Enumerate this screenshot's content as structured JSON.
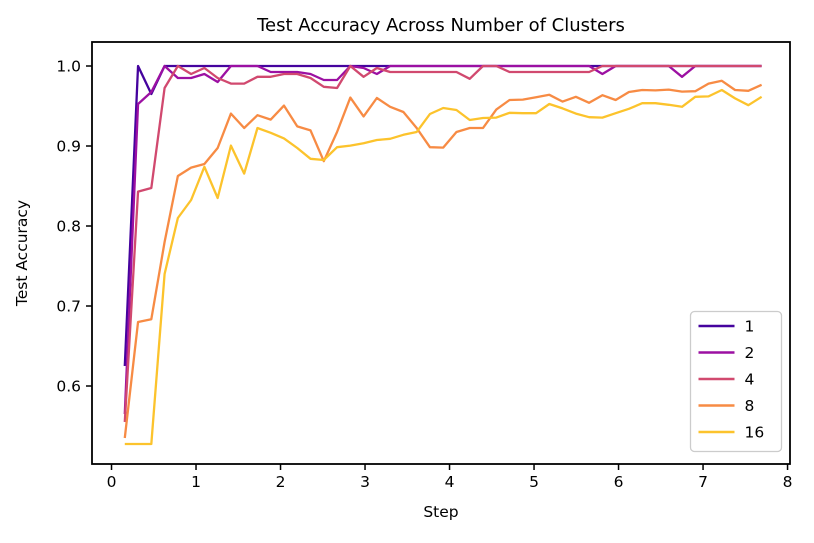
{
  "chart_data": {
    "type": "line",
    "title": "Test Accuracy Across Number of Clusters",
    "xlabel": "Step",
    "ylabel": "Test Accuracy",
    "xlim": [
      -0.231,
      8.029
    ],
    "ylim": [
      0.5025,
      1.03
    ],
    "xticks": [
      0,
      1,
      2,
      3,
      4,
      5,
      6,
      7,
      8
    ],
    "yticks": [
      0.6,
      0.7,
      0.8,
      0.9,
      1.0
    ],
    "grid": false,
    "legend": {
      "position": "lower right",
      "entries": [
        "1",
        "2",
        "4",
        "8",
        "16"
      ]
    },
    "colors": {
      "spine": "#000000",
      "background": "#ffffff",
      "legend_border": "#cccccc"
    },
    "x": [
      0.157,
      0.314,
      0.471,
      0.628,
      0.785,
      0.942,
      1.099,
      1.256,
      1.413,
      1.57,
      1.727,
      1.884,
      2.041,
      2.198,
      2.355,
      2.512,
      2.669,
      2.826,
      2.983,
      3.14,
      3.297,
      3.454,
      3.611,
      3.768,
      3.925,
      4.082,
      4.239,
      4.396,
      4.553,
      4.71,
      4.867,
      5.024,
      5.181,
      5.338,
      5.495,
      5.652,
      5.809,
      5.966,
      6.123,
      6.28,
      6.437,
      6.594,
      6.751,
      6.908,
      7.065,
      7.222,
      7.379,
      7.536,
      7.693
    ],
    "series": [
      {
        "name": "1",
        "color": "#45039e",
        "values": [
          0.625,
          1.0,
          0.965,
          1.0,
          1.0,
          1.0,
          1.0,
          1.0,
          1.0,
          1.0,
          1.0,
          1.0,
          1.0,
          1.0,
          1.0,
          1.0,
          1.0,
          1.0,
          1.0,
          1.0,
          1.0,
          1.0,
          1.0,
          1.0,
          1.0,
          1.0,
          1.0,
          1.0,
          1.0,
          1.0,
          1.0,
          1.0,
          1.0,
          1.0,
          1.0,
          1.0,
          1.0,
          1.0,
          1.0,
          1.0,
          1.0,
          1.0,
          1.0,
          1.0,
          1.0,
          1.0,
          1.0,
          1.0,
          1.0
        ]
      },
      {
        "name": "2",
        "color": "#9c10a2",
        "values": [
          0.565,
          0.9525,
          0.9675,
          1.0,
          0.985,
          0.985,
          0.99,
          0.98,
          1.0,
          1.0,
          1.0,
          0.9925,
          0.9925,
          0.9925,
          0.99,
          0.9825,
          0.9825,
          1.0,
          0.9975,
          0.99,
          1.0,
          1.0,
          1.0,
          1.0,
          1.0,
          1.0,
          1.0,
          1.0,
          1.0,
          1.0,
          1.0,
          1.0,
          1.0,
          1.0,
          1.0,
          1.0,
          0.99,
          1.0,
          1.0,
          1.0,
          1.0,
          1.0,
          0.9865,
          1.0,
          1.0,
          1.0,
          1.0,
          1.0,
          1.0
        ]
      },
      {
        "name": "4",
        "color": "#d1496f",
        "values": [
          0.555,
          0.843,
          0.8475,
          0.9725,
          1.0,
          0.99,
          0.9975,
          0.985,
          0.978,
          0.978,
          0.9865,
          0.9865,
          0.99,
          0.99,
          0.985,
          0.974,
          0.9725,
          1.0,
          0.9865,
          0.9975,
          0.9925,
          0.9925,
          0.9925,
          0.9925,
          0.9925,
          0.9925,
          0.984,
          1.0,
          1.0,
          0.9925,
          0.9925,
          0.9925,
          0.9925,
          0.9925,
          0.9925,
          0.9925,
          1.0,
          1.0,
          1.0,
          1.0,
          1.0,
          1.0,
          1.0,
          1.0,
          1.0,
          1.0,
          1.0,
          1.0,
          1.0
        ]
      },
      {
        "name": "8",
        "color": "#f78b44",
        "values": [
          0.535,
          0.68,
          0.6835,
          0.78,
          0.8625,
          0.873,
          0.8775,
          0.8975,
          0.9405,
          0.9225,
          0.9385,
          0.933,
          0.9505,
          0.9245,
          0.9195,
          0.881,
          0.9175,
          0.9605,
          0.937,
          0.96,
          0.949,
          0.9425,
          0.9225,
          0.8985,
          0.898,
          0.9175,
          0.9225,
          0.9225,
          0.9455,
          0.9575,
          0.958,
          0.961,
          0.964,
          0.9555,
          0.9615,
          0.954,
          0.9635,
          0.9575,
          0.9675,
          0.97,
          0.9695,
          0.9705,
          0.968,
          0.9685,
          0.978,
          0.9815,
          0.97,
          0.969,
          0.9765
        ]
      },
      {
        "name": "16",
        "color": "#fcc32c",
        "values": [
          0.5275,
          0.5275,
          0.5275,
          0.74,
          0.81,
          0.8325,
          0.874,
          0.835,
          0.9005,
          0.8655,
          0.9225,
          0.9165,
          0.9095,
          0.8975,
          0.884,
          0.8825,
          0.8985,
          0.9005,
          0.9035,
          0.9075,
          0.909,
          0.914,
          0.9175,
          0.94,
          0.9475,
          0.945,
          0.9325,
          0.935,
          0.9355,
          0.9415,
          0.941,
          0.941,
          0.9525,
          0.947,
          0.9405,
          0.936,
          0.9355,
          0.941,
          0.9465,
          0.9535,
          0.9535,
          0.9515,
          0.949,
          0.9615,
          0.962,
          0.97,
          0.9595,
          0.951,
          0.9615
        ]
      }
    ]
  }
}
